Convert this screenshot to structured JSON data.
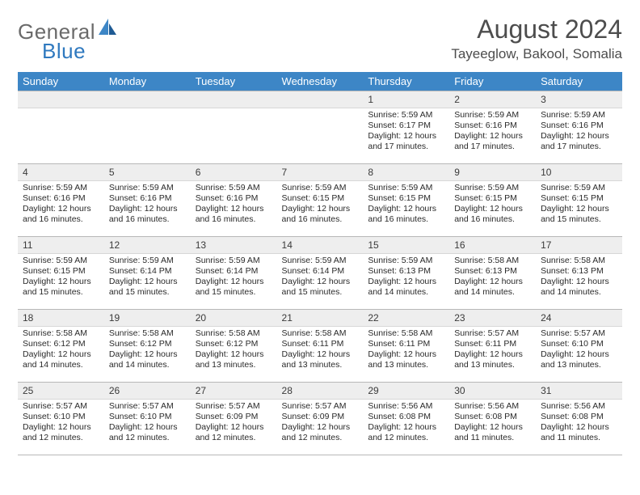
{
  "logo": {
    "word1": "General",
    "word2": "Blue"
  },
  "month_title": "August 2024",
  "location": "Tayeeglow, Bakool, Somalia",
  "colors": {
    "header_bg": "#3d86c6",
    "header_fg": "#ffffff",
    "daynum_bg": "#eeeeee",
    "border": "#b8b8b8",
    "logo_gray": "#6a6a6a",
    "logo_blue": "#2f79bf",
    "title_gray": "#4d4d4d"
  },
  "day_headers": [
    "Sunday",
    "Monday",
    "Tuesday",
    "Wednesday",
    "Thursday",
    "Friday",
    "Saturday"
  ],
  "weeks": [
    [
      null,
      null,
      null,
      null,
      {
        "n": "1",
        "sr": "5:59 AM",
        "ss": "6:17 PM",
        "dl": "12 hours and 17 minutes."
      },
      {
        "n": "2",
        "sr": "5:59 AM",
        "ss": "6:16 PM",
        "dl": "12 hours and 17 minutes."
      },
      {
        "n": "3",
        "sr": "5:59 AM",
        "ss": "6:16 PM",
        "dl": "12 hours and 17 minutes."
      }
    ],
    [
      {
        "n": "4",
        "sr": "5:59 AM",
        "ss": "6:16 PM",
        "dl": "12 hours and 16 minutes."
      },
      {
        "n": "5",
        "sr": "5:59 AM",
        "ss": "6:16 PM",
        "dl": "12 hours and 16 minutes."
      },
      {
        "n": "6",
        "sr": "5:59 AM",
        "ss": "6:16 PM",
        "dl": "12 hours and 16 minutes."
      },
      {
        "n": "7",
        "sr": "5:59 AM",
        "ss": "6:15 PM",
        "dl": "12 hours and 16 minutes."
      },
      {
        "n": "8",
        "sr": "5:59 AM",
        "ss": "6:15 PM",
        "dl": "12 hours and 16 minutes."
      },
      {
        "n": "9",
        "sr": "5:59 AM",
        "ss": "6:15 PM",
        "dl": "12 hours and 16 minutes."
      },
      {
        "n": "10",
        "sr": "5:59 AM",
        "ss": "6:15 PM",
        "dl": "12 hours and 15 minutes."
      }
    ],
    [
      {
        "n": "11",
        "sr": "5:59 AM",
        "ss": "6:15 PM",
        "dl": "12 hours and 15 minutes."
      },
      {
        "n": "12",
        "sr": "5:59 AM",
        "ss": "6:14 PM",
        "dl": "12 hours and 15 minutes."
      },
      {
        "n": "13",
        "sr": "5:59 AM",
        "ss": "6:14 PM",
        "dl": "12 hours and 15 minutes."
      },
      {
        "n": "14",
        "sr": "5:59 AM",
        "ss": "6:14 PM",
        "dl": "12 hours and 15 minutes."
      },
      {
        "n": "15",
        "sr": "5:59 AM",
        "ss": "6:13 PM",
        "dl": "12 hours and 14 minutes."
      },
      {
        "n": "16",
        "sr": "5:58 AM",
        "ss": "6:13 PM",
        "dl": "12 hours and 14 minutes."
      },
      {
        "n": "17",
        "sr": "5:58 AM",
        "ss": "6:13 PM",
        "dl": "12 hours and 14 minutes."
      }
    ],
    [
      {
        "n": "18",
        "sr": "5:58 AM",
        "ss": "6:12 PM",
        "dl": "12 hours and 14 minutes."
      },
      {
        "n": "19",
        "sr": "5:58 AM",
        "ss": "6:12 PM",
        "dl": "12 hours and 14 minutes."
      },
      {
        "n": "20",
        "sr": "5:58 AM",
        "ss": "6:12 PM",
        "dl": "12 hours and 13 minutes."
      },
      {
        "n": "21",
        "sr": "5:58 AM",
        "ss": "6:11 PM",
        "dl": "12 hours and 13 minutes."
      },
      {
        "n": "22",
        "sr": "5:58 AM",
        "ss": "6:11 PM",
        "dl": "12 hours and 13 minutes."
      },
      {
        "n": "23",
        "sr": "5:57 AM",
        "ss": "6:11 PM",
        "dl": "12 hours and 13 minutes."
      },
      {
        "n": "24",
        "sr": "5:57 AM",
        "ss": "6:10 PM",
        "dl": "12 hours and 13 minutes."
      }
    ],
    [
      {
        "n": "25",
        "sr": "5:57 AM",
        "ss": "6:10 PM",
        "dl": "12 hours and 12 minutes."
      },
      {
        "n": "26",
        "sr": "5:57 AM",
        "ss": "6:10 PM",
        "dl": "12 hours and 12 minutes."
      },
      {
        "n": "27",
        "sr": "5:57 AM",
        "ss": "6:09 PM",
        "dl": "12 hours and 12 minutes."
      },
      {
        "n": "28",
        "sr": "5:57 AM",
        "ss": "6:09 PM",
        "dl": "12 hours and 12 minutes."
      },
      {
        "n": "29",
        "sr": "5:56 AM",
        "ss": "6:08 PM",
        "dl": "12 hours and 12 minutes."
      },
      {
        "n": "30",
        "sr": "5:56 AM",
        "ss": "6:08 PM",
        "dl": "12 hours and 11 minutes."
      },
      {
        "n": "31",
        "sr": "5:56 AM",
        "ss": "6:08 PM",
        "dl": "12 hours and 11 minutes."
      }
    ]
  ]
}
